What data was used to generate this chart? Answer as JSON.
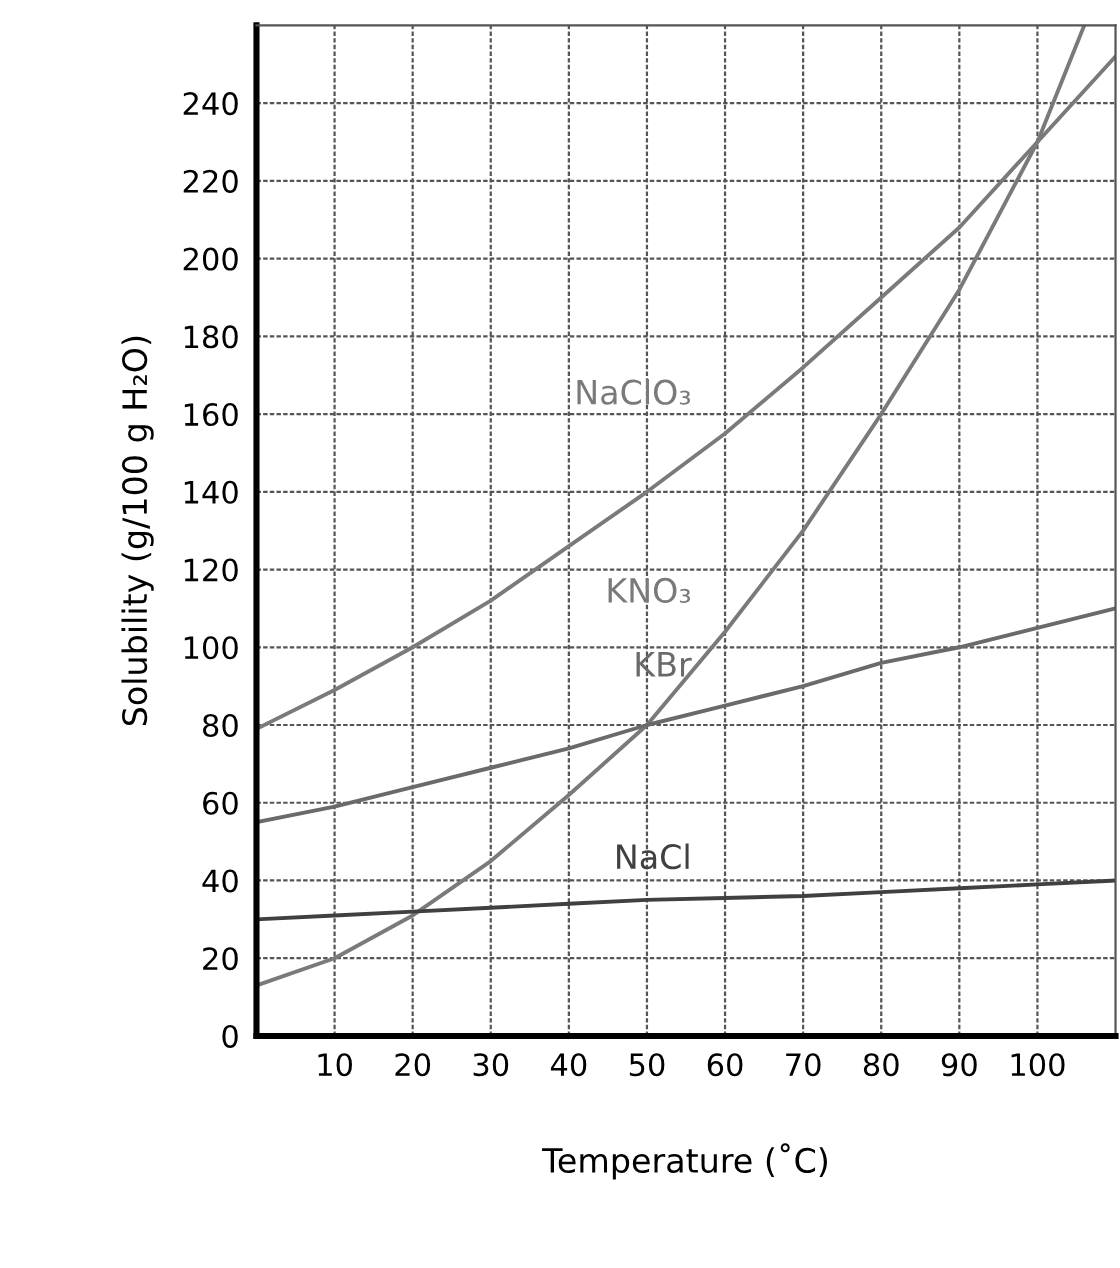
{
  "chart_data": {
    "type": "line",
    "xlabel": "Temperature (˚C)",
    "ylabel": "Solubility (g/100 g H₂O)",
    "x": [
      0,
      10,
      20,
      30,
      40,
      50,
      60,
      70,
      80,
      90,
      100,
      110
    ],
    "series": [
      {
        "name": "NaClO₃",
        "color": "#7a7a7a",
        "values": [
          79,
          89,
          100,
          112,
          126,
          140,
          155,
          172,
          190,
          208,
          230,
          252
        ]
      },
      {
        "name": "KNO₃",
        "color": "#7a7a7a",
        "x": [
          0,
          10,
          20,
          30,
          40,
          50,
          60,
          70,
          80,
          90,
          100,
          106
        ],
        "values": [
          13,
          20,
          31,
          45,
          62,
          80,
          104,
          130,
          160,
          192,
          230,
          260
        ]
      },
      {
        "name": "KBr",
        "color": "#6a6a6a",
        "values": [
          55,
          59,
          64,
          69,
          74,
          80,
          85,
          90,
          96,
          100,
          105,
          110
        ]
      },
      {
        "name": "NaCl",
        "color": "#404040",
        "values": [
          30,
          31,
          32,
          33,
          34,
          35,
          35.5,
          36,
          37,
          38,
          39,
          40
        ]
      }
    ],
    "xlim": [
      0,
      110
    ],
    "ylim": [
      0,
      260
    ],
    "xticks": [
      {
        "value": 0,
        "label": null
      },
      10,
      20,
      30,
      40,
      50,
      60,
      70,
      80,
      90,
      100
    ],
    "yticks": [
      0,
      20,
      40,
      60,
      80,
      100,
      120,
      140,
      160,
      180,
      200,
      220,
      240
    ],
    "grid": true,
    "marker": "none",
    "line_style": "solid"
  }
}
